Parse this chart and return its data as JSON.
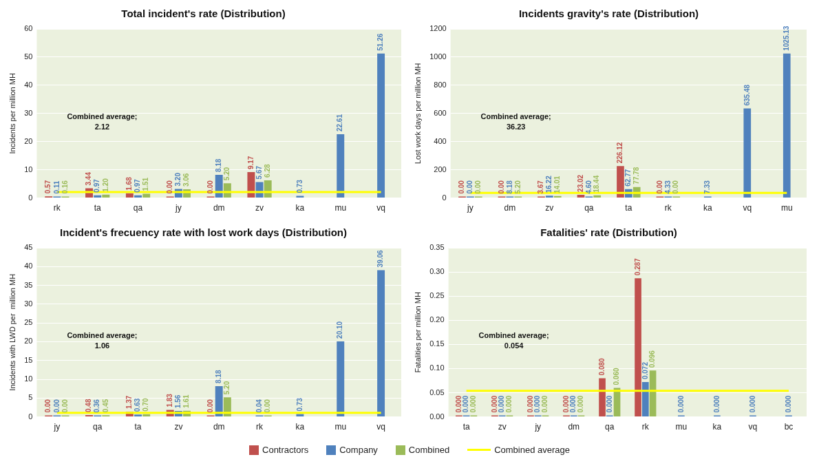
{
  "chart_data": [
    {
      "type": "bar",
      "title": "Total incident's rate (Distribution)",
      "ylabel": "Incidents per million MH",
      "categories": [
        "rk",
        "ta",
        "qa",
        "jy",
        "dm",
        "zv",
        "ka",
        "mu",
        "vq"
      ],
      "ylim": [
        0,
        60
      ],
      "yticks": [
        0,
        10,
        20,
        30,
        40,
        50,
        60
      ],
      "grid": "y",
      "legend": "bottom",
      "annotations": [
        "Combined average;\n2.12"
      ],
      "series": [
        {
          "name": "Contractors",
          "color": "#c0504d",
          "values": [
            0.57,
            3.44,
            1.68,
            0,
            0,
            9.17,
            null,
            null,
            null
          ],
          "value_labels": [
            "0.57",
            "3.44",
            "1.68",
            "0.00",
            "0.00",
            "9.17",
            null,
            null,
            null
          ]
        },
        {
          "name": "Company",
          "color": "#4f81bd",
          "values": [
            0.11,
            0.97,
            0.97,
            3.2,
            8.18,
            5.67,
            0.73,
            22.61,
            51.26
          ],
          "value_labels": [
            "0.11",
            "0.97",
            "0.97",
            "3.20",
            "8.18",
            "5.67",
            "0.73",
            "22.61",
            "51.26"
          ]
        },
        {
          "name": "Combined",
          "color": "#9bbb59",
          "values": [
            0.16,
            1.2,
            1.51,
            3.06,
            5.2,
            6.28,
            null,
            null,
            null
          ],
          "value_labels": [
            "0.16",
            "1.20",
            "1.51",
            "3.06",
            "5.20",
            "6.28",
            null,
            null,
            null
          ]
        },
        {
          "name": "Combined average",
          "type": "line",
          "color": "#ffff00",
          "values": [
            2.12,
            2.12,
            2.12,
            2.12,
            2.12,
            2.12,
            2.12,
            2.12,
            2.12
          ]
        }
      ]
    },
    {
      "type": "bar",
      "title": "Incidents gravity's rate (Distribution)",
      "ylabel": "Lost work days per million MH",
      "categories": [
        "jy",
        "dm",
        "zv",
        "qa",
        "ta",
        "rk",
        "ka",
        "vq",
        "mu"
      ],
      "ylim": [
        0,
        1200
      ],
      "yticks": [
        0,
        200,
        400,
        600,
        800,
        1000,
        1200
      ],
      "grid": "y",
      "legend": "bottom",
      "annotations": [
        "Combined average;\n36.23"
      ],
      "series": [
        {
          "name": "Contractors",
          "color": "#c0504d",
          "values": [
            0,
            0,
            3.67,
            23.02,
            226.12,
            0,
            null,
            null,
            null
          ],
          "value_labels": [
            "0.00",
            "0.00",
            "3.67",
            "23.02",
            "226.12",
            "0.00",
            null,
            null,
            null
          ]
        },
        {
          "name": "Company",
          "color": "#4f81bd",
          "values": [
            0,
            8.18,
            16.22,
            4.6,
            62.77,
            4.33,
            7.33,
            635.48,
            1025.13
          ],
          "value_labels": [
            "0.00",
            "8.18",
            "16.22",
            "4.60",
            "62.77",
            "4.33",
            "7.33",
            "635.48",
            "1025.13"
          ]
        },
        {
          "name": "Combined",
          "color": "#9bbb59",
          "values": [
            0,
            5.2,
            14.01,
            18.44,
            77.78,
            0,
            null,
            null,
            null
          ],
          "value_labels": [
            "0.00",
            "5.20",
            "14.01",
            "18.44",
            "77.78",
            "0.00",
            null,
            null,
            null
          ]
        },
        {
          "name": "Combined average",
          "type": "line",
          "color": "#ffff00",
          "values": [
            36.23,
            36.23,
            36.23,
            36.23,
            36.23,
            36.23,
            36.23,
            36.23,
            36.23
          ]
        }
      ]
    },
    {
      "type": "bar",
      "title": "Incident's frecuency rate with lost work days (Distribution)",
      "ylabel": "Incidents with LWD per  million MH",
      "categories": [
        "jy",
        "qa",
        "ta",
        "zv",
        "dm",
        "rk",
        "ka",
        "mu",
        "vq"
      ],
      "ylim": [
        0,
        45
      ],
      "yticks": [
        0,
        5,
        10,
        15,
        20,
        25,
        30,
        35,
        40,
        45
      ],
      "grid": "y",
      "legend": "bottom",
      "annotations": [
        "Combined average;\n1.06"
      ],
      "series": [
        {
          "name": "Contractors",
          "color": "#c0504d",
          "values": [
            0,
            0.48,
            1.37,
            1.83,
            0,
            null,
            null,
            null,
            null
          ],
          "value_labels": [
            "0.00",
            "0.48",
            "1.37",
            "1.83",
            "0.00",
            null,
            null,
            null,
            null
          ]
        },
        {
          "name": "Company",
          "color": "#4f81bd",
          "values": [
            0,
            0.36,
            0.63,
            1.56,
            8.18,
            0.04,
            0.73,
            20.1,
            39.06
          ],
          "value_labels": [
            "0.00",
            "0.36",
            "0.63",
            "1.56",
            "8.18",
            "0.04",
            "0.73",
            "20.10",
            "39.06"
          ]
        },
        {
          "name": "Combined",
          "color": "#9bbb59",
          "values": [
            0,
            0.45,
            0.7,
            1.61,
            5.2,
            0,
            null,
            null,
            null
          ],
          "value_labels": [
            "0.00",
            "0.45",
            "0.70",
            "1.61",
            "5.20",
            "0.00",
            null,
            null,
            null
          ]
        },
        {
          "name": "Combined average",
          "type": "line",
          "color": "#ffff00",
          "values": [
            1.06,
            1.06,
            1.06,
            1.06,
            1.06,
            1.06,
            1.06,
            1.06,
            1.06
          ]
        }
      ]
    },
    {
      "type": "bar",
      "title": "Fatalities' rate (Distribution)",
      "ylabel": "Fatalities per million MH",
      "categories": [
        "ta",
        "zv",
        "jy",
        "dm",
        "qa",
        "rk",
        "mu",
        "ka",
        "vq",
        "bc"
      ],
      "ylim": [
        0,
        0.35
      ],
      "yticks": [
        {
          "value": 0,
          "label": "0.00"
        },
        {
          "value": 0.05,
          "label": "0.05"
        },
        {
          "value": 0.1,
          "label": "0.10"
        },
        {
          "value": 0.15,
          "label": "0.15"
        },
        {
          "value": 0.2,
          "label": "0.20"
        },
        {
          "value": 0.25,
          "label": "0.25"
        },
        {
          "value": 0.3,
          "label": "0.30"
        },
        {
          "value": 0.35,
          "label": "0.35"
        }
      ],
      "grid": "y",
      "legend": "bottom",
      "annotations": [
        "Combined average;\n0.054"
      ],
      "series": [
        {
          "name": "Contractors",
          "color": "#c0504d",
          "values": [
            0,
            0,
            0,
            0,
            0.08,
            0.287,
            null,
            null,
            null,
            null
          ],
          "value_labels": [
            "0.000",
            "0.000",
            "0.000",
            "0.000",
            "0.080",
            "0.287",
            null,
            null,
            null,
            null
          ]
        },
        {
          "name": "Company",
          "color": "#4f81bd",
          "values": [
            0,
            0,
            0,
            0,
            0,
            0.072,
            0,
            0,
            0,
            0
          ],
          "value_labels": [
            "0.000",
            "0.000",
            "0.000",
            "0.000",
            "0.000",
            "0.072",
            "0.000",
            "0.000",
            "0.000",
            "0.000"
          ]
        },
        {
          "name": "Combined",
          "color": "#9bbb59",
          "values": [
            0,
            0,
            0,
            0,
            0.06,
            0.096,
            null,
            null,
            null,
            null
          ],
          "value_labels": [
            "0.000",
            "0.000",
            "0.000",
            "0.000",
            "0.060",
            "0.096",
            null,
            null,
            null,
            null
          ]
        },
        {
          "name": "Combined average",
          "type": "line",
          "color": "#ffff00",
          "values": [
            0.054,
            0.054,
            0.054,
            0.054,
            0.054,
            0.054,
            0.054,
            0.054,
            0.054,
            0.054
          ]
        }
      ]
    }
  ]
}
